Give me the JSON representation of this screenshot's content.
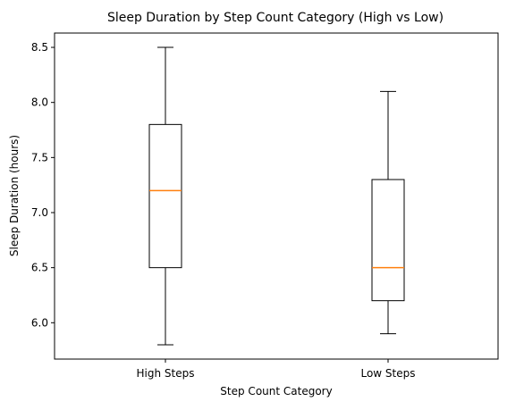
{
  "chart_data": {
    "type": "boxplot",
    "title": "Sleep Duration by Step Count Category (High vs Low)",
    "xlabel": "Step Count Category",
    "ylabel": "Sleep Duration (hours)",
    "categories": [
      "High Steps",
      "Low Steps"
    ],
    "boxes": [
      {
        "category": "High Steps",
        "whisker_low": 5.8,
        "q1": 6.5,
        "median": 7.2,
        "q3": 7.8,
        "whisker_high": 8.5
      },
      {
        "category": "Low Steps",
        "whisker_low": 5.9,
        "q1": 6.2,
        "median": 6.5,
        "q3": 7.3,
        "whisker_high": 8.1
      }
    ],
    "ylim": [
      5.67,
      8.63
    ],
    "yticks": [
      6.0,
      6.5,
      7.0,
      7.5,
      8.0,
      8.5
    ],
    "ytick_labels": [
      "6.0",
      "6.5",
      "7.0",
      "7.5",
      "8.0",
      "8.5"
    ],
    "grid": false,
    "colors": {
      "box": "#000000",
      "median": "#ff7f0e",
      "whisker": "#000000"
    }
  }
}
